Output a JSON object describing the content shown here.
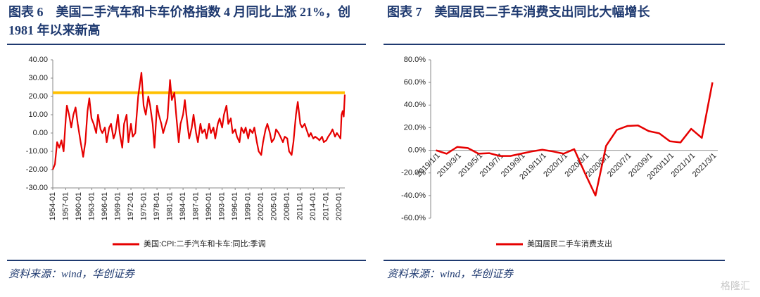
{
  "chart_data": [
    {
      "type": "line",
      "title": "图表 6　美国二手汽车和卡车价格指数 4 月同比上涨 21%，创 1981 年以来新高",
      "source": "资料来源：wind，华创证券",
      "x": [
        "1954-01",
        "1954-07",
        "1955-01",
        "1955-07",
        "1956-01",
        "1956-07",
        "1957-01",
        "1957-04",
        "1957-10",
        "1958-04",
        "1958-10",
        "1959-04",
        "1959-10",
        "1960-06",
        "1961-01",
        "1961-07",
        "1962-01",
        "1962-06",
        "1962-12",
        "1963-06",
        "1964-01",
        "1964-06",
        "1965-01",
        "1965-06",
        "1966-01",
        "1966-06",
        "1967-01",
        "1967-06",
        "1968-01",
        "1968-06",
        "1969-01",
        "1969-06",
        "1970-01",
        "1970-06",
        "1971-01",
        "1971-06",
        "1972-01",
        "1972-06",
        "1973-01",
        "1973-09",
        "1974-06",
        "1974-12",
        "1975-06",
        "1976-01",
        "1976-06",
        "1977-01",
        "1977-06",
        "1978-01",
        "1978-06",
        "1979-01",
        "1979-06",
        "1980-06",
        "1981-01",
        "1981-06",
        "1982-01",
        "1982-06",
        "1983-01",
        "1983-06",
        "1984-01",
        "1984-06",
        "1985-01",
        "1985-06",
        "1986-01",
        "1986-06",
        "1987-01",
        "1987-06",
        "1988-01",
        "1988-06",
        "1989-01",
        "1989-06",
        "1990-01",
        "1990-06",
        "1991-01",
        "1991-06",
        "1992-01",
        "1992-06",
        "1993-01",
        "1993-06",
        "1994-01",
        "1994-06",
        "1995-01",
        "1995-06",
        "1996-01",
        "1996-06",
        "1997-01",
        "1997-06",
        "1998-01",
        "1998-06",
        "1999-01",
        "1999-06",
        "2000-01",
        "2000-06",
        "2001-01",
        "2001-06",
        "2002-01",
        "2002-06",
        "2003-01",
        "2003-06",
        "2004-01",
        "2004-06",
        "2005-01",
        "2005-06",
        "2006-01",
        "2006-06",
        "2007-01",
        "2007-06",
        "2008-01",
        "2008-06",
        "2009-01",
        "2009-06",
        "2010-01",
        "2010-06",
        "2011-01",
        "2011-06",
        "2012-01",
        "2012-06",
        "2013-01",
        "2013-06",
        "2014-01",
        "2014-06",
        "2015-01",
        "2015-06",
        "2016-01",
        "2016-06",
        "2017-01",
        "2017-06",
        "2018-01",
        "2018-06",
        "2019-01",
        "2019-06",
        "2020-01",
        "2020-04",
        "2020-07",
        "2020-10",
        "2021-01",
        "2021-04"
      ],
      "series": [
        {
          "name": "美国:CPI:二手汽车和卡车:同比:季调",
          "color": "#e60000",
          "values": [
            -20,
            -17,
            -5,
            -8,
            -4,
            -10,
            8,
            15,
            10,
            3,
            10,
            14,
            5,
            -5,
            -13,
            -5,
            12,
            19,
            8,
            5,
            0,
            10,
            2,
            0,
            3,
            -5,
            3,
            5,
            -3,
            0,
            10,
            0,
            -8,
            5,
            10,
            -5,
            5,
            -2,
            0,
            20,
            33,
            15,
            10,
            20,
            15,
            5,
            -8,
            15,
            10,
            5,
            0,
            8,
            29,
            18,
            22,
            10,
            -5,
            5,
            10,
            18,
            5,
            -3,
            3,
            10,
            0,
            -5,
            5,
            0,
            2,
            -3,
            5,
            0,
            3,
            -3,
            5,
            8,
            3,
            10,
            15,
            5,
            8,
            0,
            2,
            -2,
            -5,
            3,
            0,
            3,
            -3,
            2,
            0,
            3,
            -5,
            -10,
            -12,
            -5,
            2,
            5,
            0,
            -5,
            -3,
            2,
            0,
            -2,
            -5,
            -2,
            -3,
            -10,
            -12,
            -5,
            10,
            17,
            5,
            3,
            5,
            2,
            -2,
            0,
            -3,
            -2,
            -3,
            -4,
            -2,
            -5,
            -4,
            -2,
            0,
            2,
            -2,
            0,
            -2,
            -3,
            10,
            12,
            9,
            21
          ]
        }
      ],
      "xlim": [
        "1954-01",
        "2021-04"
      ],
      "xticks": [
        "1954-01",
        "1957-01",
        "1960-01",
        "1963-01",
        "1966-01",
        "1969-01",
        "1972-01",
        "1975-01",
        "1978-01",
        "1981-01",
        "1984-01",
        "1987-01",
        "1990-01",
        "1993-01",
        "1996-01",
        "1999-01",
        "2002-01",
        "2005-01",
        "2008-01",
        "2011-01",
        "2014-01",
        "2017-01",
        "2020-01"
      ],
      "ylim": [
        -30,
        40
      ],
      "yticks": [
        {
          "value": -30,
          "label": "-30.00"
        },
        {
          "value": -20,
          "label": "-20.00"
        },
        {
          "value": -10,
          "label": "-10.00"
        },
        {
          "value": 0,
          "label": "0.00"
        },
        {
          "value": 10,
          "label": "10.00"
        },
        {
          "value": 20,
          "label": "20.00"
        },
        {
          "value": 30,
          "label": "30.00"
        },
        {
          "value": 40,
          "label": "40.00"
        }
      ],
      "reference_line": {
        "value": 22,
        "color": "#ffc000"
      }
    },
    {
      "type": "line",
      "title": "图表 7　美国居民二手车消费支出同比大幅增长",
      "source": "资料来源：wind，华创证券",
      "categories": [
        "2019/1/1",
        null,
        "2019/3/1",
        null,
        "2019/5/1",
        null,
        "2019/7/1",
        null,
        "2019/9/1",
        null,
        "2019/11/1",
        null,
        "2020/1/1",
        null,
        "2020/3/1",
        null,
        "2020/5/1",
        null,
        "2020/7/1",
        null,
        "2020/9/1",
        null,
        "2020/11/1",
        null,
        "2021/1/1",
        null,
        "2021/3/1"
      ],
      "series": [
        {
          "name": "美国居民二手车消费支出",
          "color": "#e60000",
          "values": [
            0,
            -3,
            3,
            2,
            -3,
            -2.5,
            -5,
            -5,
            -3,
            -1,
            0.5,
            -1,
            -3,
            1,
            -20,
            -40,
            4,
            18,
            21.5,
            22,
            17,
            15,
            8,
            7,
            19,
            11,
            60
          ]
        }
      ],
      "ylim": [
        -60,
        80
      ],
      "yticks": [
        {
          "value": -60,
          "label": "-60.0%"
        },
        {
          "value": -40,
          "label": "-40.0%"
        },
        {
          "value": -20,
          "label": "-20.0%"
        },
        {
          "value": 0,
          "label": "0.0%"
        },
        {
          "value": 20,
          "label": "20.0%"
        },
        {
          "value": 40,
          "label": "40.0%"
        },
        {
          "value": 60,
          "label": "60.0%"
        },
        {
          "value": 80,
          "label": "80.0%"
        }
      ]
    }
  ],
  "watermark": "格隆汇"
}
